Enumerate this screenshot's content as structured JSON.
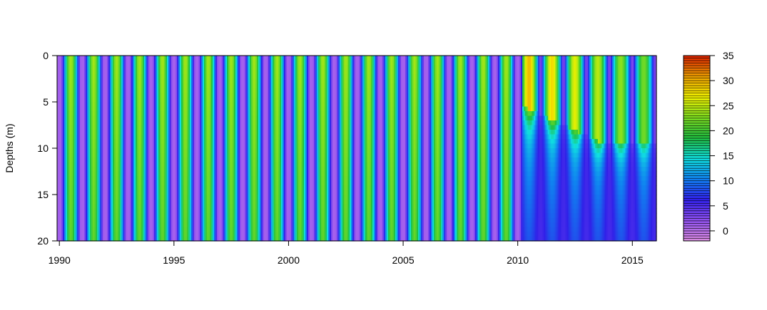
{
  "chart_data": {
    "type": "heatmap",
    "title": "",
    "xlabel": "",
    "ylabel": "Depths (m)",
    "xlim": [
      1989.9,
      2016.05
    ],
    "ylim": [
      20,
      0
    ],
    "x_ticks": [
      1990,
      1995,
      2000,
      2005,
      2010,
      2015
    ],
    "x_tick_labels": [
      "1990",
      "1995",
      "2000",
      "2005",
      "2010",
      "2015"
    ],
    "y_ticks": [
      0,
      5,
      10,
      15,
      20
    ],
    "y_tick_labels": [
      "0",
      "5",
      "10",
      "15",
      "20"
    ],
    "colorbar": {
      "min": -2,
      "max": 35,
      "ticks": [
        0,
        5,
        10,
        15,
        20,
        25,
        30,
        35
      ],
      "tick_labels": [
        "0",
        "5",
        "10",
        "15",
        "20",
        "25",
        "30",
        "35"
      ]
    },
    "description_values": {
      "winter_min": 1,
      "summer_max_mixed": 24,
      "summer_max_stratified": 32,
      "hypolimnion_stratified": [
        5,
        12
      ],
      "regime_change_year": 2010.2,
      "thermocline_depth_range": [
        5.5,
        10
      ]
    },
    "palette": [
      "#d98be0",
      "#9050f0",
      "#3020e8",
      "#1080f0",
      "#10e0e0",
      "#20c040",
      "#80e020",
      "#f0f000",
      "#f0a000",
      "#e02000"
    ],
    "legend": "right"
  }
}
